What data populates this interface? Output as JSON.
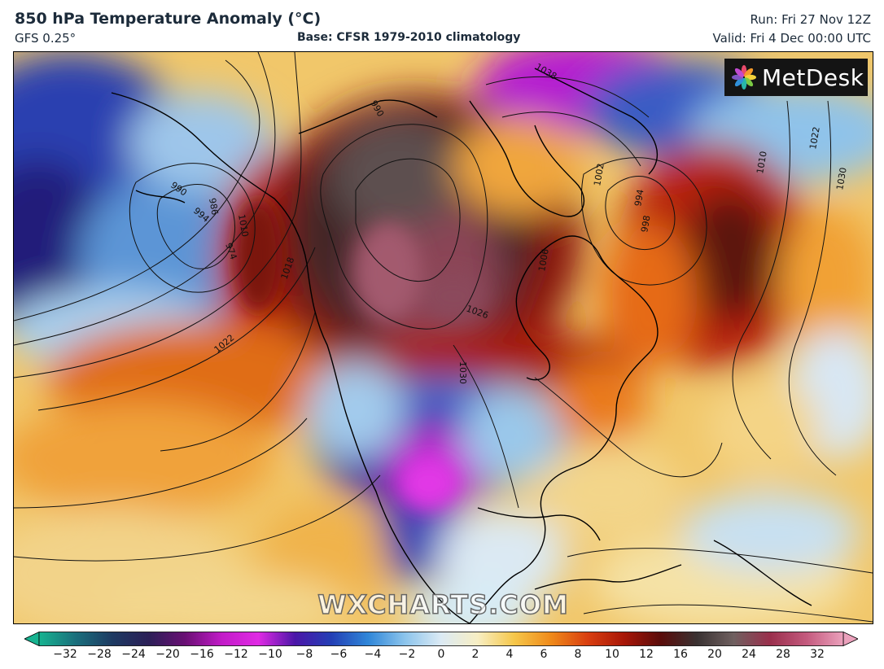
{
  "header": {
    "title": "850 hPa Temperature Anomaly (°C)",
    "model": "GFS 0.25°",
    "base": "Base: CFSR 1979-2010 climatology",
    "run": "Run: Fri 27 Nov 12Z",
    "valid": "Valid: Fri 4 Dec 00:00 UTC"
  },
  "logo": {
    "text": "MetDesk",
    "icon": "metdesk-pinwheel-icon"
  },
  "watermark": "WXCHARTS.COM",
  "map": {
    "isobar_labels": [
      "990",
      "986",
      "994",
      "1010",
      "1018",
      "1022",
      "1030",
      "1026",
      "1002",
      "994",
      "998",
      "1006",
      "1010",
      "1022",
      "1030",
      "1038",
      "990",
      "974"
    ]
  },
  "colorbar": {
    "ticks": [
      "−32",
      "−28",
      "−24",
      "−20",
      "−16",
      "−12",
      "−10",
      "−8",
      "−6",
      "−4",
      "−2",
      "0",
      "2",
      "4",
      "6",
      "8",
      "10",
      "12",
      "16",
      "20",
      "24",
      "28",
      "32"
    ],
    "colors": [
      "#17b390",
      "#1a6f7c",
      "#1d3a62",
      "#2b1f57",
      "#6a0f74",
      "#c21bc8",
      "#e02ae4",
      "#4b16a8",
      "#233fb5",
      "#2f86d8",
      "#8bc4ec",
      "#dceaf4",
      "#f7eec3",
      "#f6c74a",
      "#ef8a1a",
      "#d93f10",
      "#a81607",
      "#5a0c0a",
      "#3a3232",
      "#6f6060",
      "#9a2f4c",
      "#c45a7e",
      "#eba1bc"
    ]
  },
  "colors": {
    "title_text": "#1c2b3a",
    "logo_bg": "#141414"
  }
}
